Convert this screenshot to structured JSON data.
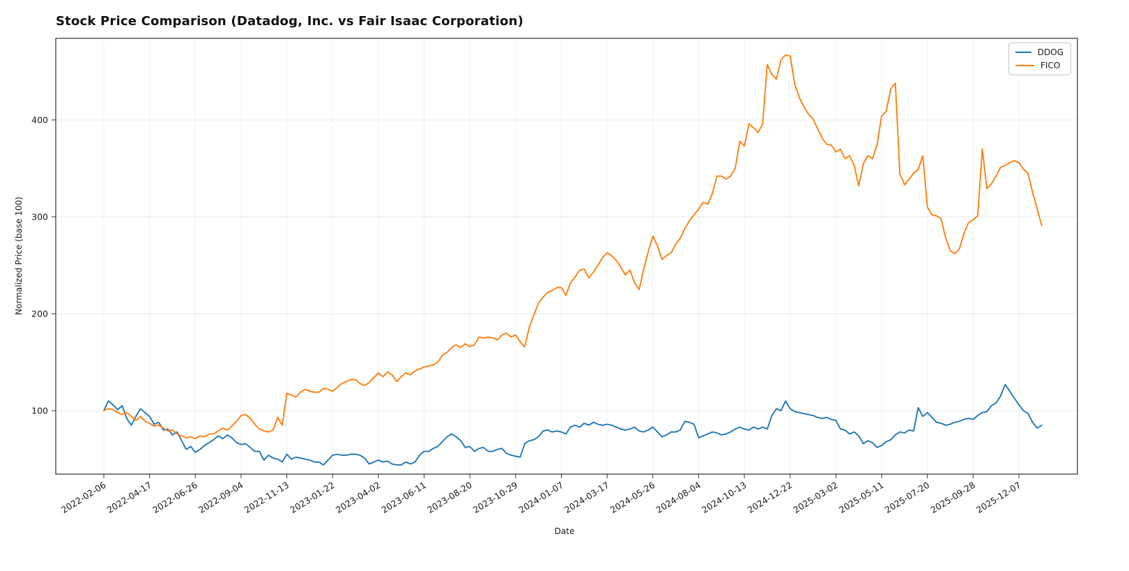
{
  "title": "Stock Price Comparison (Datadog, Inc. vs Fair Isaac Corporation)",
  "chart_data": {
    "type": "line",
    "title": "Stock Price Comparison (Datadog, Inc. vs Fair Isaac Corporation)",
    "xlabel": "Date",
    "ylabel": "Normalized Price (base 100)",
    "grid": true,
    "legend_position": "upper right",
    "x_start": "2022-02-06",
    "x_freq": "weekly",
    "x_tick_every": 10,
    "x_tick_labels": [
      "2022-02-06",
      "2022-04-17",
      "2022-06-26",
      "2022-09-04",
      "2022-11-13",
      "2023-01-22",
      "2023-04-02",
      "2023-06-11",
      "2023-08-20",
      "2023-10-29",
      "2024-01-07",
      "2024-03-17",
      "2024-05-26",
      "2024-08-04",
      "2024-10-13",
      "2024-12-22",
      "2025-03-02",
      "2025-05-11",
      "2025-07-20",
      "2025-09-28",
      "2025-12-07"
    ],
    "y_ticks": [
      100,
      200,
      300,
      400
    ],
    "ylim": [
      34,
      484
    ],
    "series": [
      {
        "name": "DDOG",
        "color": "#1f77b4",
        "values": [
          100,
          110,
          106,
          101,
          105,
          92,
          85,
          94,
          102,
          98,
          94,
          86,
          88,
          80,
          81,
          75,
          78,
          69,
          60,
          63,
          57,
          60,
          64,
          67,
          70,
          74,
          71,
          75,
          72,
          67,
          65,
          66,
          62,
          58,
          58,
          49,
          54,
          51,
          50,
          47,
          55,
          50,
          52,
          51,
          50,
          49,
          47,
          47,
          44,
          49,
          54,
          55,
          54,
          54,
          55,
          55,
          54,
          51,
          45,
          47,
          49,
          47,
          48,
          45,
          44,
          44,
          47,
          45,
          47,
          54,
          58,
          58,
          61,
          63,
          68,
          73,
          76,
          73,
          69,
          62,
          63,
          58,
          61,
          62,
          58,
          58,
          60,
          61,
          56,
          54,
          53,
          52,
          66,
          69,
          70,
          73,
          79,
          80,
          78,
          79,
          78,
          76,
          83,
          85,
          83,
          87,
          85,
          88,
          86,
          85,
          86,
          85,
          83,
          81,
          80,
          81,
          83,
          79,
          78,
          80,
          83,
          78,
          73,
          75,
          78,
          78,
          80,
          89,
          88,
          86,
          72,
          74,
          76,
          78,
          77,
          75,
          76,
          78,
          81,
          83,
          81,
          80,
          83,
          81,
          83,
          81,
          95,
          102,
          100,
          110,
          102,
          99,
          98,
          97,
          96,
          95,
          93,
          92,
          93,
          91,
          90,
          81,
          80,
          76,
          78,
          74,
          66,
          69,
          67,
          62,
          64,
          68,
          70,
          75,
          78,
          77,
          80,
          79,
          103,
          94,
          98,
          93,
          88,
          87,
          85,
          86,
          88,
          89,
          91,
          92,
          91,
          95,
          98,
          99,
          105,
          108,
          115,
          127,
          120,
          113,
          106,
          100,
          97,
          88,
          82,
          85
        ]
      },
      {
        "name": "FICO",
        "color": "#ff7f0e",
        "values": [
          100,
          102,
          101,
          98,
          96,
          98,
          94,
          90,
          94,
          89,
          87,
          84,
          85,
          82,
          79,
          80,
          76,
          74,
          72,
          73,
          71,
          74,
          73,
          76,
          76,
          79,
          82,
          80,
          84,
          89,
          95,
          96,
          92,
          86,
          81,
          79,
          78,
          80,
          93,
          85,
          118,
          116,
          114,
          119,
          122,
          120,
          119,
          119,
          123,
          122,
          120,
          124,
          128,
          130,
          132,
          132,
          128,
          126,
          129,
          134,
          139,
          135,
          140,
          137,
          130,
          135,
          139,
          137,
          141,
          143,
          145,
          146,
          147,
          150,
          157,
          160,
          165,
          168,
          165,
          169,
          166,
          168,
          176,
          175,
          176,
          175,
          173,
          178,
          180,
          176,
          178,
          171,
          166,
          186,
          199,
          211,
          217,
          222,
          224,
          227,
          227,
          219,
          232,
          238,
          245,
          246,
          237,
          243,
          250,
          258,
          263,
          260,
          255,
          248,
          240,
          245,
          232,
          225,
          246,
          264,
          280,
          270,
          256,
          260,
          263,
          272,
          278,
          288,
          296,
          302,
          308,
          315,
          313,
          324,
          342,
          342,
          339,
          342,
          350,
          378,
          373,
          396,
          392,
          387,
          396,
          457,
          447,
          442,
          462,
          467,
          466,
          437,
          423,
          414,
          406,
          401,
          391,
          381,
          375,
          374,
          367,
          370,
          360,
          363,
          353,
          332,
          355,
          363,
          360,
          374,
          404,
          409,
          432,
          438,
          344,
          333,
          339,
          345,
          349,
          363,
          310,
          302,
          301,
          298,
          278,
          265,
          262,
          267,
          283,
          294,
          297,
          301,
          370,
          329,
          334,
          342,
          351,
          353,
          356,
          358,
          356,
          349,
          345,
          325,
          308,
          291
        ]
      }
    ]
  }
}
